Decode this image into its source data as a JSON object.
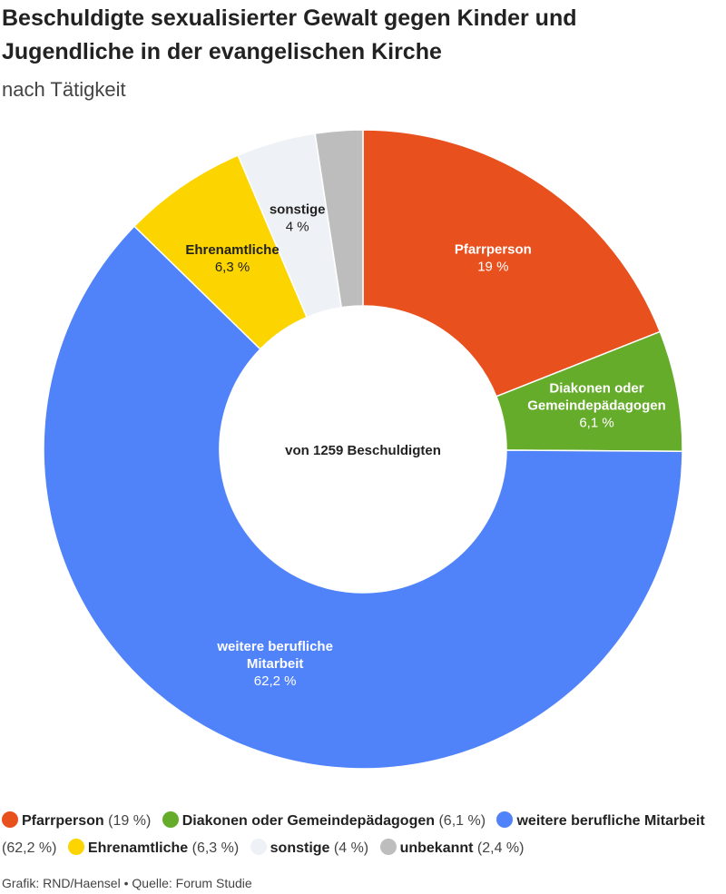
{
  "title": "Beschuldigte sexualisierter Gewalt gegen Kinder und Jugendliche in der evangelischen Kirche",
  "subtitle": "nach Tätigkeit",
  "center_label": "von 1259 Beschuldigten",
  "footer": {
    "credit": "Grafik: RND/Haensel",
    "separator": "•",
    "source": "Quelle: Forum Studie"
  },
  "chart_data": {
    "type": "pie",
    "donut": true,
    "unit": "%",
    "categories": [
      "Pfarrperson",
      "Diakonen oder Gemeindepädagogen",
      "weitere berufliche Mitarbeit",
      "Ehrenamtliche",
      "sonstige",
      "unbekannt"
    ],
    "values": [
      19,
      6.1,
      62.2,
      6.3,
      4,
      2.4
    ],
    "value_labels": [
      "19 %",
      "6,1 %",
      "62,2 %",
      "6,3 %",
      "4 %",
      "2,4 %"
    ],
    "slice_labels": [
      [
        "Pfarrperson"
      ],
      [
        "Diakonen oder",
        "Gemeindepädagogen"
      ],
      [
        "weitere berufliche",
        "Mitarbeit"
      ],
      [
        "Ehrenamtliche"
      ],
      [
        "sonstige"
      ],
      []
    ],
    "colors": [
      "#e8501e",
      "#66ac2b",
      "#5082fa",
      "#fcd400",
      "#eef1f5",
      "#bdbdbd"
    ],
    "label_colors": [
      "#ffffff",
      "#ffffff",
      "#ffffff",
      "#222222",
      "#222222",
      "#222222"
    ],
    "legend": [
      {
        "name": "Pfarrperson",
        "value": "(19 %)"
      },
      {
        "name": "Diakonen oder Gemeindepädagogen",
        "value": "(6,1 %)"
      },
      {
        "name": "weitere berufliche Mitarbeit",
        "value": "(62,2 %)"
      },
      {
        "name": "Ehrenamtliche",
        "value": "(6,3 %)"
      },
      {
        "name": "sonstige",
        "value": "(4 %)"
      },
      {
        "name": "unbekannt",
        "value": "(2,4 %)"
      }
    ],
    "legend_position": "bottom"
  }
}
